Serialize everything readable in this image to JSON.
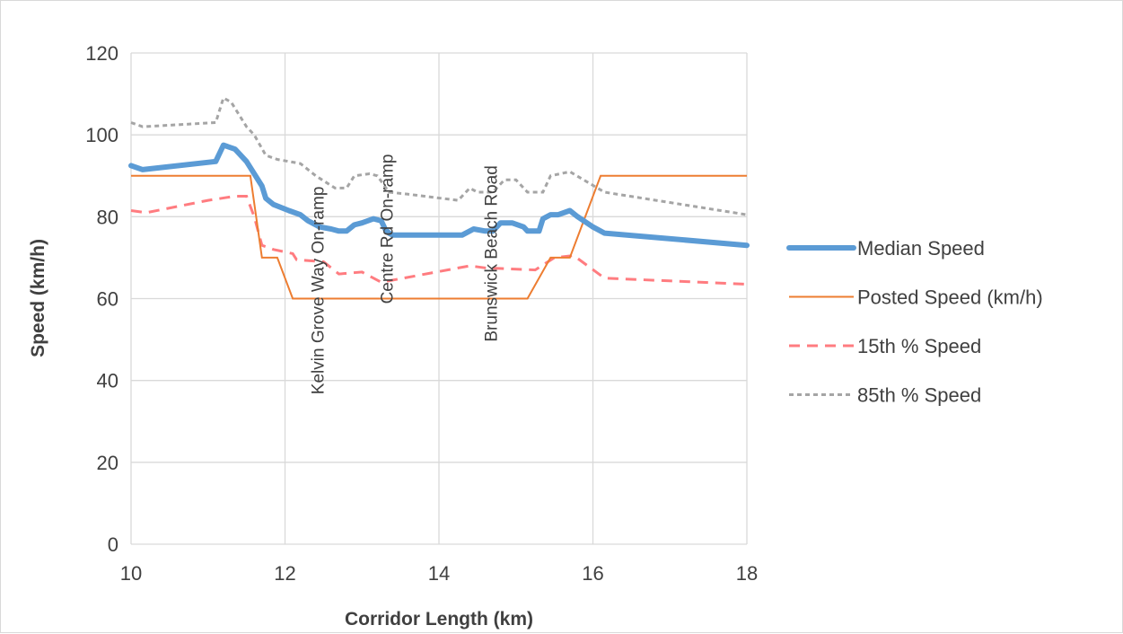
{
  "chart_data": {
    "type": "line",
    "xlabel": "Corridor Length (km)",
    "ylabel": "Speed (km/h)",
    "xlim": [
      10,
      18
    ],
    "ylim": [
      0,
      120
    ],
    "xticks": [
      10,
      12,
      14,
      16,
      18
    ],
    "yticks": [
      0,
      20,
      40,
      60,
      80,
      100,
      120
    ],
    "grid": true,
    "legend_position": "right",
    "series": [
      {
        "name": "Median Speed",
        "color": "#5b9bd5",
        "style": "solid-thick",
        "x": [
          10.0,
          10.15,
          11.1,
          11.2,
          11.35,
          11.5,
          11.7,
          11.75,
          11.85,
          12.05,
          12.2,
          12.3,
          12.45,
          12.6,
          12.7,
          12.8,
          12.9,
          13.0,
          13.15,
          13.25,
          13.3,
          13.35,
          13.4,
          13.6,
          14.2,
          14.3,
          14.45,
          14.6,
          14.7,
          14.8,
          14.95,
          15.1,
          15.15,
          15.3,
          15.35,
          15.45,
          15.55,
          15.7,
          15.8,
          16.0,
          16.15,
          18.0
        ],
        "y": [
          92.5,
          91.5,
          93.5,
          97.5,
          96.5,
          93.5,
          87.5,
          84.5,
          83.0,
          81.5,
          80.5,
          79.0,
          77.5,
          77.0,
          76.5,
          76.5,
          78.0,
          78.5,
          79.5,
          79.0,
          77.0,
          76.0,
          75.5,
          75.5,
          75.5,
          75.5,
          77.0,
          76.5,
          76.5,
          78.5,
          78.5,
          77.5,
          76.5,
          76.5,
          79.5,
          80.5,
          80.5,
          81.5,
          80.0,
          77.5,
          76.0,
          73.0
        ]
      },
      {
        "name": "Posted Speed (km/h)",
        "color": "#ed7d31",
        "style": "solid-thin",
        "x": [
          10.0,
          11.55,
          11.7,
          11.9,
          12.1,
          15.15,
          15.45,
          15.7,
          16.1,
          18.0
        ],
        "y": [
          90,
          90,
          70,
          70,
          60,
          60,
          70,
          70,
          90,
          90
        ]
      },
      {
        "name": "15th % Speed",
        "color": "#ff7c80",
        "style": "dashed",
        "x": [
          10.0,
          10.2,
          11.0,
          11.35,
          11.5,
          11.6,
          11.7,
          11.85,
          12.1,
          12.15,
          12.5,
          12.7,
          13.0,
          13.25,
          14.4,
          14.6,
          15.25,
          15.5,
          15.75,
          16.15,
          18.0
        ],
        "y": [
          81.5,
          81.0,
          84.0,
          85.0,
          85.0,
          80.0,
          73.0,
          72.0,
          71.0,
          69.5,
          69.0,
          66.0,
          66.5,
          64.0,
          68.0,
          67.5,
          67.0,
          70.0,
          70.5,
          65.0,
          63.5
        ]
      },
      {
        "name": "85th % Speed",
        "color": "#a5a5a5",
        "style": "dotted",
        "x": [
          10.0,
          10.15,
          11.1,
          11.2,
          11.3,
          11.5,
          11.6,
          11.75,
          11.9,
          12.2,
          12.4,
          12.65,
          12.8,
          12.9,
          13.1,
          13.2,
          13.35,
          13.6,
          14.25,
          14.4,
          14.5,
          14.7,
          14.85,
          15.0,
          15.15,
          15.35,
          15.45,
          15.7,
          16.15,
          18.0
        ],
        "y": [
          103,
          102,
          103,
          109,
          108,
          102,
          100,
          95,
          94,
          93,
          90,
          87,
          87,
          90,
          90.5,
          90,
          86,
          85.5,
          84,
          87,
          86,
          86,
          89,
          89,
          86,
          86,
          90,
          91,
          86,
          80.5
        ]
      }
    ],
    "annotations": [
      {
        "text": "Kelvin Grove Way On-ramp",
        "x": 12.5,
        "y": 62
      },
      {
        "text": "Centre Rd On-ramp",
        "x": 13.4,
        "y": 77
      },
      {
        "text": "Brunswick Beach Road",
        "x": 14.75,
        "y": 71
      }
    ]
  }
}
